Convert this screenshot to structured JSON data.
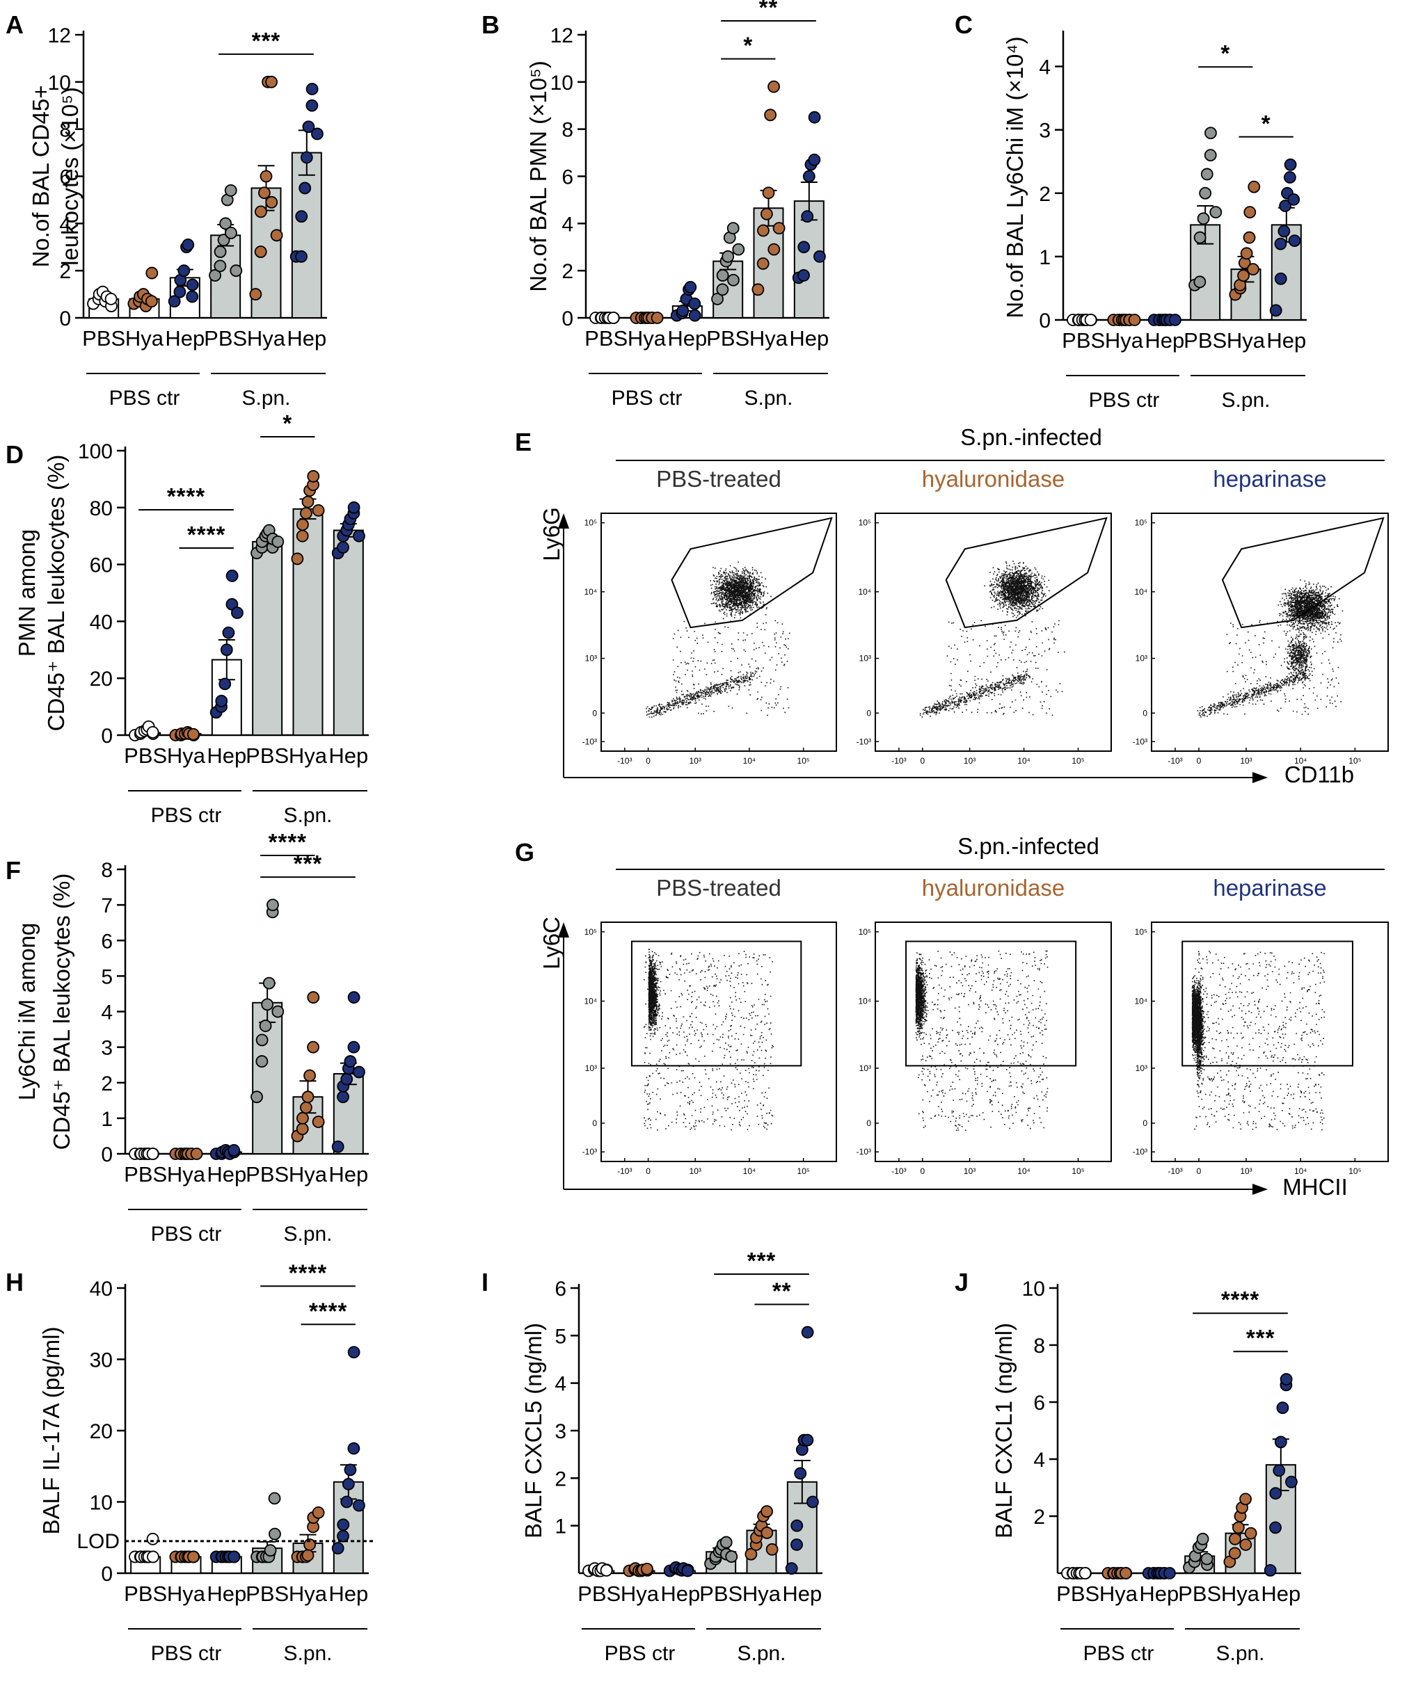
{
  "colors": {
    "bar_ctr": "#ffffff",
    "bar_spn": "#c9cfcd",
    "pbs_ctr_dot": "#ffffff",
    "pbs_dot": "#8e9593",
    "hya_dot": "#b06b3d",
    "hep_dot": "#1f3176",
    "hya_text": "#a8642f",
    "hep_text": "#1f3380"
  },
  "chart_data": [
    {
      "panel": "A",
      "type": "bar",
      "title": "",
      "ylabel_lines": [
        "No.of BAL CD45+",
        "leukocytes (×10⁵)"
      ],
      "ylim": [
        0,
        12
      ],
      "yticks": [
        "0",
        "2",
        "4",
        "6",
        "8",
        "10",
        "12"
      ],
      "categories": [
        "PBS",
        "Hya",
        "Hep",
        "PBS",
        "Hya",
        "Hep"
      ],
      "groups": [
        "PBS ctr",
        "S.pn."
      ],
      "means": [
        0.8,
        0.8,
        1.7,
        3.5,
        5.5,
        7.0
      ],
      "sems": [
        0.15,
        0.15,
        0.35,
        0.45,
        0.95,
        0.95
      ],
      "points": [
        [
          0.6,
          0.8,
          1.0,
          1.1,
          0.7,
          0.9,
          0.5,
          0.8
        ],
        [
          0.6,
          0.7,
          0.9,
          1.0,
          0.5,
          0.8,
          1.9,
          0.7
        ],
        [
          0.7,
          1.1,
          1.6,
          2.0,
          3.0,
          3.1,
          1.4,
          0.9
        ],
        [
          1.8,
          2.2,
          2.8,
          3.3,
          4.0,
          5.0,
          5.4,
          3.6,
          2.0
        ],
        [
          1.0,
          2.8,
          4.5,
          5.3,
          6.0,
          10.0,
          10.0,
          4.9,
          3.5
        ],
        [
          2.6,
          2.6,
          4.3,
          5.5,
          6.8,
          8.1,
          9.0,
          9.7,
          7.8
        ]
      ],
      "comparisons": [
        {
          "from": 3,
          "to": 5,
          "label": "***",
          "level": 0
        }
      ]
    },
    {
      "panel": "B",
      "type": "bar",
      "title": "",
      "ylabel_lines": [
        "No.of BAL PMN (×10⁵)"
      ],
      "ylim": [
        0,
        12
      ],
      "yticks": [
        "0",
        "2",
        "4",
        "6",
        "8",
        "10",
        "12"
      ],
      "categories": [
        "PBS",
        "Hya",
        "Hep",
        "PBS",
        "Hya",
        "Hep"
      ],
      "groups": [
        "PBS ctr",
        "S.pn."
      ],
      "means": [
        0.0,
        0.0,
        0.5,
        2.4,
        4.65,
        4.95
      ],
      "sems": [
        0.0,
        0.0,
        0.2,
        0.35,
        0.75,
        0.8
      ],
      "points": [
        [
          0,
          0,
          0,
          0,
          0,
          0,
          0,
          0
        ],
        [
          0,
          0,
          0,
          0,
          0,
          0,
          0,
          0,
          0
        ],
        [
          0.1,
          0.2,
          0.3,
          0.8,
          1.2,
          1.3,
          0.1,
          0.6
        ],
        [
          0.8,
          1.2,
          1.8,
          2.4,
          2.6,
          3.4,
          3.8,
          1.6,
          2.9
        ],
        [
          1.2,
          2.3,
          3.7,
          4.4,
          5.3,
          8.6,
          9.8,
          2.9,
          3.8
        ],
        [
          1.7,
          1.8,
          3.0,
          4.3,
          6.0,
          6.5,
          6.7,
          8.5,
          2.6
        ]
      ],
      "comparisons": [
        {
          "from": 3,
          "to": 4,
          "label": "*",
          "level": 0
        },
        {
          "from": 3,
          "to": 5,
          "label": "**",
          "level": 1
        }
      ]
    },
    {
      "panel": "C",
      "type": "bar",
      "title": "",
      "ylabel_lines": [
        "No.of BAL Ly6Chi iM (×10⁴)"
      ],
      "ylim": [
        0,
        4.5
      ],
      "yticks": [
        "0",
        "1",
        "2",
        "3",
        "4"
      ],
      "categories": [
        "PBS",
        "Hya",
        "Hep",
        "PBS",
        "Hya",
        "Hep"
      ],
      "groups": [
        "PBS ctr",
        "S.pn."
      ],
      "means": [
        0.0,
        0.0,
        0.0,
        1.5,
        0.8,
        1.5
      ],
      "sems": [
        0.0,
        0.0,
        0.0,
        0.3,
        0.2,
        0.27
      ],
      "points": [
        [
          0,
          0,
          0,
          0,
          0,
          0,
          0,
          0
        ],
        [
          0,
          0,
          0,
          0,
          0,
          0,
          0,
          0,
          0
        ],
        [
          0,
          0,
          0,
          0,
          0,
          0,
          0,
          0,
          0
        ],
        [
          0.55,
          0.6,
          1.3,
          1.6,
          2.0,
          2.3,
          2.6,
          2.95,
          1.7
        ],
        [
          0.4,
          0.5,
          0.55,
          0.7,
          0.9,
          1.05,
          1.3,
          1.7,
          2.1,
          0.8
        ],
        [
          0.15,
          0.65,
          1.2,
          1.4,
          1.8,
          2.0,
          2.25,
          2.45,
          1.25,
          1.9
        ]
      ],
      "comparisons": [
        {
          "from": 3,
          "to": 4,
          "label": "*",
          "level": 1
        },
        {
          "from": 4,
          "to": 5,
          "label": "*",
          "level": 0
        }
      ]
    },
    {
      "panel": "D",
      "type": "bar",
      "title": "",
      "ylabel_lines": [
        "PMN among",
        "CD45⁺ BAL leukocytes (%)"
      ],
      "ylim": [
        0,
        100
      ],
      "yticks": [
        "0",
        "20",
        "40",
        "60",
        "80",
        "100"
      ],
      "categories": [
        "PBS",
        "Hya",
        "Hep",
        "PBS",
        "Hya",
        "Hep"
      ],
      "groups": [
        "PBS ctr",
        "S.pn."
      ],
      "means": [
        0.8,
        0.5,
        26.5,
        68.0,
        79.5,
        72.0
      ],
      "sems": [
        0.5,
        0.2,
        7.0,
        2.0,
        3.5,
        2.3
      ],
      "points": [
        [
          0,
          0.5,
          1,
          1.5,
          2,
          3,
          0.5,
          1
        ],
        [
          0,
          0,
          0.5,
          0.5,
          1,
          0.5,
          0,
          0.3
        ],
        [
          8,
          10,
          12,
          18,
          30,
          36,
          46,
          56,
          43
        ],
        [
          64,
          66,
          68,
          70,
          71,
          72,
          66,
          69,
          68
        ],
        [
          62,
          70,
          74,
          78,
          82,
          86,
          88,
          91,
          79
        ],
        [
          64,
          66,
          70,
          72,
          74,
          76,
          78,
          80,
          70
        ]
      ],
      "comparisons": [
        {
          "from": 1,
          "to": 2,
          "label": "****",
          "level": 0
        },
        {
          "from": 0,
          "to": 2,
          "label": "****",
          "level": 1
        },
        {
          "from": 3,
          "to": 4,
          "label": "*",
          "level": 2
        }
      ]
    },
    {
      "panel": "F",
      "type": "bar",
      "title": "",
      "ylabel_lines": [
        "Ly6Chi iM among",
        "CD45⁺ BAL leukocytes (%)"
      ],
      "ylim": [
        0,
        8
      ],
      "yticks": [
        "0",
        "1",
        "2",
        "3",
        "4",
        "5",
        "6",
        "7",
        "8"
      ],
      "categories": [
        "PBS",
        "Hya",
        "Hep",
        "PBS",
        "Hya",
        "Hep"
      ],
      "groups": [
        "PBS ctr",
        "S.pn."
      ],
      "means": [
        0.0,
        0.0,
        0.05,
        4.25,
        1.6,
        2.25
      ],
      "sems": [
        0.0,
        0.0,
        0.02,
        0.55,
        0.45,
        0.3
      ],
      "points": [
        [
          0,
          0,
          0,
          0,
          0,
          0,
          0,
          0
        ],
        [
          0,
          0,
          0,
          0,
          0,
          0,
          0,
          0,
          0
        ],
        [
          0,
          0,
          0.05,
          0.1,
          0.05,
          0,
          0.05,
          0.1
        ],
        [
          1.6,
          2.6,
          3.2,
          3.6,
          4.2,
          4.8,
          6.8,
          7.0,
          4.0
        ],
        [
          0.5,
          0.7,
          1.0,
          1.3,
          1.6,
          2.2,
          3.0,
          4.4,
          0.9
        ],
        [
          0.2,
          1.6,
          1.9,
          2.1,
          2.4,
          2.6,
          3.0,
          4.4,
          2.3
        ]
      ],
      "comparisons": [
        {
          "from": 3,
          "to": 5,
          "label": "***",
          "level": 0
        },
        {
          "from": 3,
          "to": 4,
          "label": "****",
          "level": 1
        }
      ]
    },
    {
      "panel": "H",
      "type": "bar",
      "title": "",
      "ylabel_lines": [
        "BALF  IL-17A (pg/ml)"
      ],
      "ylim": [
        0,
        40
      ],
      "yticks": [
        "0",
        "10",
        "20",
        "30",
        "40"
      ],
      "categories": [
        "PBS",
        "Hya",
        "Hep",
        "PBS",
        "Hya",
        "Hep"
      ],
      "groups": [
        "PBS ctr",
        "S.pn."
      ],
      "lod": {
        "value": 4.5,
        "label": "LOD"
      },
      "means": [
        2.3,
        2.3,
        2.3,
        3.5,
        4.2,
        12.8
      ],
      "sems": [
        0.3,
        0.0,
        0.0,
        0.9,
        1.2,
        2.4
      ],
      "points": [
        [
          2.3,
          2.3,
          2.3,
          2.3,
          2.3,
          2.3,
          2.3,
          4.8
        ],
        [
          2.3,
          2.3,
          2.3,
          2.3,
          2.3,
          2.3,
          2.3,
          2.3
        ],
        [
          2.3,
          2.3,
          2.3,
          2.3,
          2.3,
          2.3,
          2.3,
          2.3
        ],
        [
          2.3,
          2.3,
          2.3,
          2.3,
          2.3,
          3.2,
          5.5,
          10.5
        ],
        [
          2.3,
          2.3,
          2.3,
          2.3,
          2.5,
          4.0,
          6.5,
          7.8,
          8.5
        ],
        [
          3.5,
          5.2,
          6.8,
          10.0,
          12.5,
          14.5,
          17.5,
          31.0,
          9.5
        ]
      ],
      "comparisons": [
        {
          "from": 4,
          "to": 5,
          "label": "****",
          "level": 0
        },
        {
          "from": 3,
          "to": 5,
          "label": "****",
          "level": 1
        }
      ]
    },
    {
      "panel": "I",
      "type": "bar",
      "title": "",
      "ylabel_lines": [
        "BALF CXCL5 (ng/ml)"
      ],
      "ylim": [
        0,
        6
      ],
      "yticks": [
        "1",
        "2",
        "3",
        "4",
        "5",
        "6"
      ],
      "categories": [
        "PBS",
        "Hya",
        "Hep",
        "PBS",
        "Hya",
        "Hep"
      ],
      "groups": [
        "PBS ctr",
        "S.pn."
      ],
      "means": [
        0.05,
        0.05,
        0.05,
        0.45,
        0.9,
        1.92
      ],
      "sems": [
        0.02,
        0.02,
        0.02,
        0.08,
        0.13,
        0.45
      ],
      "points": [
        [
          0.05,
          0.08,
          0.1,
          0.05,
          0.05,
          0.1,
          0.07,
          0.06
        ],
        [
          0.05,
          0.08,
          0.1,
          0.05,
          0.05,
          0.07,
          0.06,
          0.09
        ],
        [
          0.05,
          0.1,
          0.12,
          0.08,
          0.06,
          0.1,
          0.07,
          0.05
        ],
        [
          0.2,
          0.3,
          0.35,
          0.45,
          0.5,
          0.6,
          0.65,
          0.4,
          0.35
        ],
        [
          0.4,
          0.6,
          0.75,
          0.9,
          1.0,
          1.2,
          1.3,
          0.85,
          0.5
        ],
        [
          0.1,
          0.6,
          1.0,
          2.1,
          2.6,
          2.8,
          2.8,
          5.07,
          1.5
        ]
      ],
      "comparisons": [
        {
          "from": 4,
          "to": 5,
          "label": "**",
          "level": 0
        },
        {
          "from": 3,
          "to": 5,
          "label": "***",
          "level": 1
        }
      ]
    },
    {
      "panel": "J",
      "type": "bar",
      "title": "",
      "ylabel_lines": [
        "BALF CXCL1 (ng/ml)"
      ],
      "ylim": [
        0,
        10
      ],
      "yticks": [
        "2",
        "4",
        "6",
        "8",
        "10"
      ],
      "categories": [
        "PBS",
        "Hya",
        "Hep",
        "PBS",
        "Hya",
        "Hep"
      ],
      "groups": [
        "PBS ctr",
        "S.pn."
      ],
      "means": [
        0.0,
        0.0,
        0.0,
        0.6,
        1.4,
        3.8
      ],
      "sems": [
        0.0,
        0.0,
        0.0,
        0.15,
        0.3,
        0.9
      ],
      "points": [
        [
          0,
          0,
          0,
          0,
          0,
          0,
          0,
          0
        ],
        [
          0,
          0,
          0,
          0,
          0,
          0,
          0,
          0
        ],
        [
          0,
          0,
          0,
          0,
          0,
          0,
          0,
          0,
          0
        ],
        [
          0.2,
          0.4,
          0.6,
          0.9,
          1.0,
          1.2,
          0.3,
          0.5
        ],
        [
          0.4,
          0.7,
          1.2,
          1.6,
          2.0,
          2.3,
          2.6,
          1.0,
          1.4
        ],
        [
          0.1,
          1.6,
          2.8,
          3.6,
          4.6,
          5.8,
          6.6,
          6.8,
          3.2
        ]
      ],
      "comparisons": [
        {
          "from": 4,
          "to": 5,
          "label": "***",
          "level": 0
        },
        {
          "from": 3,
          "to": 5,
          "label": "****",
          "level": 1
        }
      ]
    },
    {
      "panel": "E",
      "type": "scatter",
      "title": "S.pn.-infected",
      "subplots": [
        "PBS-treated",
        "hyaluronidase",
        "heparinase"
      ],
      "xlabel": "CD11b",
      "ylabel": "Ly6G",
      "xticks": [
        "-10³",
        "0",
        "10³",
        "10⁴",
        "10⁵"
      ],
      "yticks": [
        "10⁵",
        "10⁴",
        "10³",
        "0",
        "-10³"
      ]
    },
    {
      "panel": "G",
      "type": "scatter",
      "title": "S.pn.-infected",
      "subplots": [
        "PBS-treated",
        "hyaluronidase",
        "heparinase"
      ],
      "xlabel": "MHCII",
      "ylabel": "Ly6C",
      "xticks": [
        "-10³",
        "0",
        "10³",
        "10⁴",
        "10⁵"
      ],
      "yticks": [
        "10⁵",
        "10⁴",
        "10³",
        "0",
        "-10³"
      ]
    }
  ]
}
